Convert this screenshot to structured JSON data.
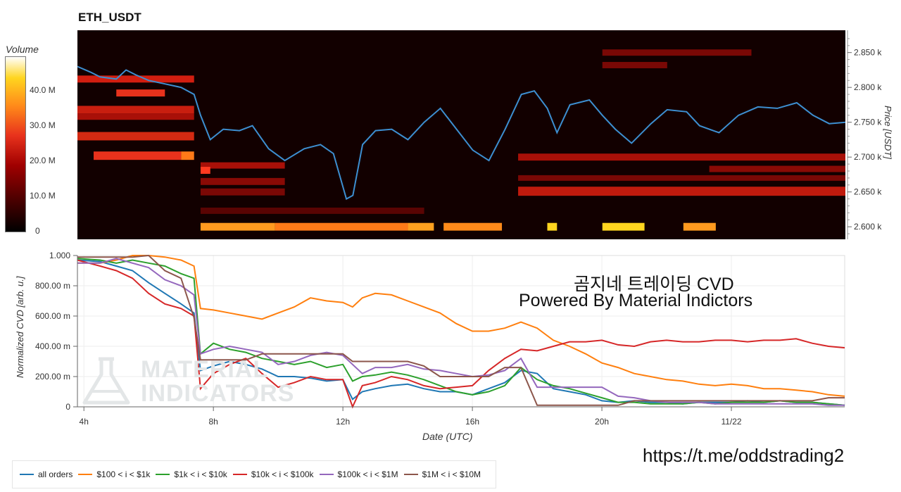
{
  "heatmap": {
    "title": "ETH_USDT",
    "colorbar_title": "Volume",
    "colorbar_ticks": [
      "40.0 M",
      "30.0 M",
      "20.0 M",
      "10.0 M",
      "0"
    ],
    "colorbar_tick_values": [
      40,
      30,
      20,
      10,
      0
    ],
    "colorbar_range": [
      0,
      49
    ],
    "price_axis_label": "Price [USDT]",
    "price_ticks": [
      "2.850 k",
      "2.800 k",
      "2.750 k",
      "2.700 k",
      "2.650 k",
      "2.600 k"
    ],
    "price_tick_values": [
      2850,
      2800,
      2750,
      2700,
      2650,
      2600
    ],
    "price_range": [
      2582,
      2882
    ],
    "colors": {
      "low": "#000000",
      "mid": "#c81e0f",
      "high": "#ffd51f",
      "price_line": "#3d8fd1"
    }
  },
  "cvd": {
    "ylabel": "Normalized CVD [arb. u.]",
    "xlabel": "Date (UTC)",
    "y_ticks": [
      "1.000",
      "800.00 m",
      "600.00 m",
      "400.00 m",
      "200.00 m",
      "0"
    ],
    "y_tick_values": [
      1.0,
      0.8,
      0.6,
      0.4,
      0.2,
      0
    ],
    "x_ticks": [
      "4h",
      "8h",
      "12h",
      "16h",
      "20h",
      "11/22"
    ],
    "x_tick_values": [
      4,
      8,
      12,
      16,
      20,
      24
    ],
    "x_range": [
      3.8,
      27.5
    ],
    "y_range": [
      0,
      1.0
    ]
  },
  "overlay": {
    "line1": "곰지네 트레이딩 CVD",
    "line2": "Powered By Material Indictors",
    "link": "https://t.me/oddstrading2"
  },
  "watermark": {
    "line1": "MATERIAL",
    "line2": "INDICATORS"
  },
  "legend": [
    {
      "label": "all orders",
      "color": "#1f77b4"
    },
    {
      "label": "$100 < i < $1k",
      "color": "#ff7f0e"
    },
    {
      "label": "$1k < i < $10k",
      "color": "#2ca02c"
    },
    {
      "label": "$10k < i < $100k",
      "color": "#d62728"
    },
    {
      "label": "$100k < i < $1M",
      "color": "#9467bd"
    },
    {
      "label": "$1M < i < $10M",
      "color": "#8c564b"
    }
  ],
  "chart_data": [
    {
      "type": "line",
      "title": "ETH_USDT",
      "ylabel": "Price [USDT]",
      "ylim": [
        2582,
        2882
      ],
      "note_background": "order-book volume heatmap (Volume, 0 to 40.0 M)",
      "x": [
        3.8,
        4.2,
        4.5,
        5.0,
        5.3,
        5.6,
        6.0,
        6.5,
        7.0,
        7.4,
        7.6,
        7.9,
        8.3,
        8.8,
        9.2,
        9.7,
        10.2,
        10.8,
        11.3,
        11.7,
        12.1,
        12.3,
        12.6,
        13.0,
        13.5,
        14.0,
        14.5,
        15.0,
        15.5,
        16.0,
        16.5,
        17.0,
        17.5,
        17.9,
        18.3,
        18.6,
        19.0,
        19.6,
        20.0,
        20.4,
        20.9,
        21.5,
        22.0,
        22.6,
        23.0,
        23.6,
        24.2,
        24.8,
        25.4,
        26.0,
        26.5,
        27.0,
        27.5
      ],
      "series": [
        {
          "name": "",
          "values": [
            2830,
            2822,
            2815,
            2812,
            2825,
            2818,
            2810,
            2805,
            2800,
            2790,
            2760,
            2725,
            2740,
            2738,
            2745,
            2712,
            2695,
            2712,
            2718,
            2705,
            2640,
            2645,
            2718,
            2738,
            2740,
            2725,
            2750,
            2770,
            2740,
            2710,
            2695,
            2740,
            2790,
            2795,
            2770,
            2735,
            2775,
            2782,
            2760,
            2740,
            2720,
            2748,
            2768,
            2765,
            2745,
            2735,
            2760,
            2772,
            2770,
            2778,
            2760,
            2748,
            2750
          ]
        }
      ]
    },
    {
      "type": "line",
      "xlabel": "Date (UTC)",
      "ylabel": "Normalized CVD [arb. u.]",
      "ylim": [
        0,
        1.0
      ],
      "x": [
        3.8,
        4.5,
        5.0,
        5.5,
        6.0,
        6.5,
        7.0,
        7.4,
        7.6,
        8.0,
        8.5,
        9.0,
        9.5,
        10.0,
        10.5,
        11.0,
        11.5,
        12.0,
        12.3,
        12.6,
        13.0,
        13.5,
        14.0,
        14.5,
        15.0,
        15.5,
        16.0,
        16.5,
        17.0,
        17.5,
        18.0,
        18.5,
        19.0,
        19.5,
        20.0,
        20.5,
        21.0,
        21.5,
        22.0,
        22.5,
        23.0,
        23.5,
        24.0,
        24.5,
        25.0,
        25.5,
        26.0,
        26.5,
        27.0,
        27.5
      ],
      "series": [
        {
          "name": "all orders",
          "values": [
            0.97,
            0.96,
            0.93,
            0.9,
            0.82,
            0.75,
            0.68,
            0.62,
            0.24,
            0.27,
            0.3,
            0.28,
            0.25,
            0.2,
            0.2,
            0.19,
            0.17,
            0.18,
            0.05,
            0.1,
            0.12,
            0.14,
            0.15,
            0.12,
            0.1,
            0.1,
            0.08,
            0.12,
            0.16,
            0.24,
            0.22,
            0.12,
            0.1,
            0.08,
            0.04,
            0.03,
            0.04,
            0.03,
            0.03,
            0.02,
            0.03,
            0.03,
            0.03,
            0.04,
            0.03,
            0.04,
            0.03,
            0.03,
            0.02,
            0.01
          ]
        },
        {
          "name": "$100 < i < $1k",
          "values": [
            0.95,
            0.95,
            0.97,
            1.0,
            1.0,
            0.99,
            0.97,
            0.93,
            0.65,
            0.64,
            0.62,
            0.6,
            0.58,
            0.62,
            0.66,
            0.72,
            0.7,
            0.69,
            0.66,
            0.72,
            0.75,
            0.74,
            0.7,
            0.66,
            0.62,
            0.55,
            0.5,
            0.5,
            0.52,
            0.56,
            0.52,
            0.44,
            0.4,
            0.35,
            0.29,
            0.26,
            0.22,
            0.2,
            0.18,
            0.17,
            0.15,
            0.14,
            0.15,
            0.14,
            0.12,
            0.12,
            0.11,
            0.1,
            0.08,
            0.07
          ]
        },
        {
          "name": "$1k < i < $10k",
          "values": [
            0.98,
            0.97,
            0.95,
            0.97,
            0.95,
            0.93,
            0.88,
            0.85,
            0.35,
            0.42,
            0.38,
            0.36,
            0.32,
            0.3,
            0.28,
            0.3,
            0.26,
            0.28,
            0.17,
            0.2,
            0.21,
            0.23,
            0.21,
            0.18,
            0.14,
            0.1,
            0.08,
            0.1,
            0.14,
            0.26,
            0.18,
            0.14,
            0.12,
            0.09,
            0.06,
            0.03,
            0.03,
            0.02,
            0.02,
            0.02,
            0.03,
            0.02,
            0.03,
            0.03,
            0.03,
            0.04,
            0.03,
            0.03,
            0.02,
            0.01
          ]
        },
        {
          "name": "$10k < i < $100k",
          "values": [
            0.97,
            0.93,
            0.9,
            0.85,
            0.75,
            0.68,
            0.65,
            0.6,
            0.12,
            0.22,
            0.28,
            0.32,
            0.22,
            0.13,
            0.16,
            0.2,
            0.18,
            0.18,
            0.0,
            0.14,
            0.16,
            0.2,
            0.18,
            0.14,
            0.12,
            0.13,
            0.14,
            0.24,
            0.32,
            0.38,
            0.37,
            0.4,
            0.43,
            0.43,
            0.44,
            0.41,
            0.4,
            0.43,
            0.44,
            0.43,
            0.43,
            0.44,
            0.44,
            0.43,
            0.44,
            0.44,
            0.45,
            0.42,
            0.4,
            0.39
          ]
        },
        {
          "name": "$100k < i < $1M",
          "values": [
            0.95,
            0.95,
            0.98,
            0.95,
            0.92,
            0.84,
            0.8,
            0.74,
            0.35,
            0.38,
            0.4,
            0.38,
            0.36,
            0.28,
            0.3,
            0.34,
            0.36,
            0.34,
            0.28,
            0.22,
            0.26,
            0.26,
            0.28,
            0.25,
            0.24,
            0.22,
            0.2,
            0.21,
            0.24,
            0.32,
            0.13,
            0.13,
            0.13,
            0.13,
            0.13,
            0.07,
            0.06,
            0.04,
            0.03,
            0.03,
            0.03,
            0.02,
            0.02,
            0.02,
            0.02,
            0.02,
            0.02,
            0.02,
            0.01,
            0.01
          ]
        },
        {
          "name": "$1M < i < $10M",
          "values": [
            0.99,
            0.99,
            0.99,
            0.99,
            1.0,
            0.9,
            0.85,
            0.59,
            0.31,
            0.31,
            0.31,
            0.31,
            0.35,
            0.35,
            0.35,
            0.35,
            0.35,
            0.35,
            0.3,
            0.3,
            0.3,
            0.3,
            0.3,
            0.27,
            0.2,
            0.2,
            0.2,
            0.2,
            0.26,
            0.26,
            0.01,
            0.01,
            0.01,
            0.01,
            0.01,
            0.01,
            0.04,
            0.04,
            0.04,
            0.04,
            0.04,
            0.04,
            0.04,
            0.04,
            0.04,
            0.04,
            0.04,
            0.04,
            0.06,
            0.06
          ]
        }
      ]
    }
  ]
}
